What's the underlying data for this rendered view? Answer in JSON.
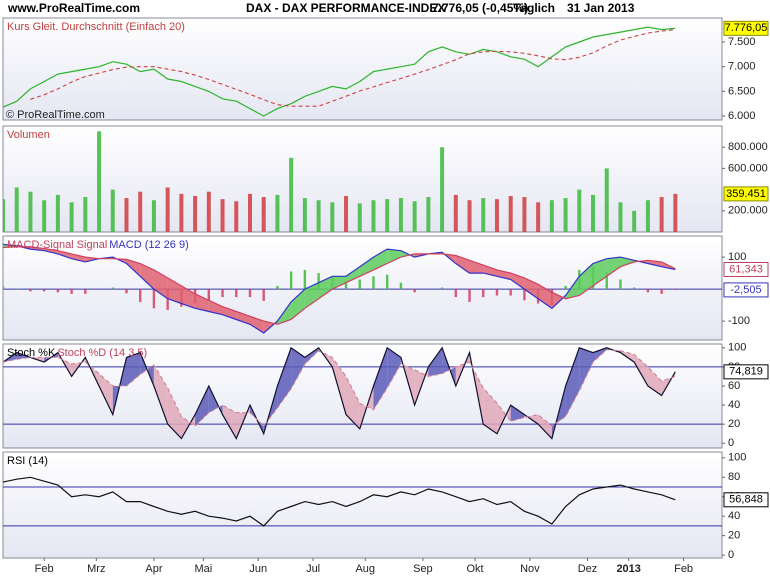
{
  "header": {
    "site": "www.ProRealTime.com",
    "title": "DAX - DAX PERFORMANCE-INDEX",
    "quote": "7.776,05 (-0,45%)",
    "period": "Täglich",
    "date": "31 Jan 2013"
  },
  "chart_data": [
    {
      "type": "line",
      "titles": [
        {
          "text": "Kurs Gleit. Durchschnitt (Einfach 20)",
          "color": "#c04040"
        }
      ],
      "copyright": "© ProRealTime.com",
      "xlim": [
        0,
        262
      ],
      "ylim": [
        5920,
        7985
      ],
      "yticks": [
        {
          "value": 6000,
          "label": "6.000"
        },
        {
          "value": 6500,
          "label": "6.500"
        },
        {
          "value": 7000,
          "label": "7.000"
        },
        {
          "value": 7500,
          "label": "7.500"
        }
      ],
      "x": [
        0,
        5,
        10,
        15,
        20,
        25,
        30,
        35,
        40,
        45,
        50,
        55,
        60,
        65,
        70,
        75,
        80,
        85,
        90,
        95,
        100,
        105,
        110,
        115,
        120,
        125,
        130,
        135,
        140,
        145,
        150,
        155,
        160,
        165,
        170,
        175,
        180,
        185,
        190,
        195,
        200,
        205,
        210,
        215,
        220,
        225,
        230,
        235,
        240,
        245
      ],
      "series": [
        {
          "name": "Kurs",
          "color": "#2db52d",
          "style": "line",
          "last_label": "7.776,05",
          "label_fill": "#ffff00",
          "label_color": "#000000",
          "values": [
            6180,
            6300,
            6550,
            6700,
            6850,
            6900,
            6950,
            7000,
            7100,
            7050,
            6900,
            6950,
            6750,
            6700,
            6600,
            6500,
            6350,
            6300,
            6150,
            6000,
            6150,
            6250,
            6400,
            6500,
            6600,
            6550,
            6700,
            6900,
            6950,
            7000,
            7050,
            7300,
            7400,
            7300,
            7250,
            7350,
            7300,
            7200,
            7150,
            7000,
            7200,
            7400,
            7500,
            7600,
            7650,
            7700,
            7750,
            7800,
            7750,
            7776.05
          ]
        },
        {
          "name": "Gleit. Durchschnitt",
          "color": "#d04040",
          "style": "dashed",
          "values": [
            null,
            null,
            6340,
            6430,
            6550,
            6690,
            6800,
            6870,
            6940,
            6990,
            7000,
            7000,
            6950,
            6900,
            6830,
            6740,
            6640,
            6540,
            6440,
            6330,
            6230,
            6200,
            6200,
            6200,
            6300,
            6400,
            6510,
            6590,
            6680,
            6760,
            6850,
            6940,
            7040,
            7140,
            7260,
            7300,
            7310,
            7300,
            7270,
            7220,
            7160,
            7140,
            7190,
            7280,
            7420,
            7540,
            7610,
            7680,
            7720,
            7750
          ]
        }
      ]
    },
    {
      "type": "bar",
      "titles": [
        {
          "text": "Volumen",
          "color": "#c04040"
        }
      ],
      "xlim": [
        0,
        262
      ],
      "ylim": [
        0,
        1000000
      ],
      "yticks": [
        {
          "value": 200000,
          "label": "200.000"
        },
        {
          "value": 600000,
          "label": "600.000"
        },
        {
          "value": 800000,
          "label": "800.000"
        }
      ],
      "x": [
        0,
        5,
        10,
        15,
        20,
        25,
        30,
        35,
        40,
        45,
        50,
        55,
        60,
        65,
        70,
        75,
        80,
        85,
        90,
        95,
        100,
        105,
        110,
        115,
        120,
        125,
        130,
        135,
        140,
        145,
        150,
        155,
        160,
        165,
        170,
        175,
        180,
        185,
        190,
        195,
        200,
        205,
        210,
        215,
        220,
        225,
        230,
        235,
        240,
        245
      ],
      "series": [
        {
          "name": "Volumen",
          "color": "#3cb83c",
          "style": "bar",
          "last_label": "359.451",
          "label_fill": "#ffff00",
          "label_color": "#000000",
          "values": [
            310000,
            420000,
            380000,
            300000,
            350000,
            280000,
            330000,
            950000,
            400000,
            320000,
            380000,
            300000,
            420000,
            360000,
            340000,
            380000,
            310000,
            290000,
            360000,
            330000,
            350000,
            700000,
            320000,
            300000,
            280000,
            340000,
            270000,
            300000,
            310000,
            320000,
            290000,
            330000,
            800000,
            350000,
            300000,
            320000,
            310000,
            340000,
            330000,
            280000,
            300000,
            320000,
            400000,
            350000,
            600000,
            280000,
            200000,
            300000,
            330000,
            359451
          ],
          "colors": [
            "#3cb83c",
            "#3cb83c",
            "#3cb83c",
            "#3cb83c",
            "#3cb83c",
            "#3cb83c",
            "#3cb83c",
            "#3cb83c",
            "#3cb83c",
            "#d03c3c",
            "#d03c3c",
            "#3cb83c",
            "#d03c3c",
            "#d03c3c",
            "#d03c3c",
            "#d03c3c",
            "#d03c3c",
            "#d03c3c",
            "#d03c3c",
            "#d03c3c",
            "#3cb83c",
            "#3cb83c",
            "#3cb83c",
            "#3cb83c",
            "#3cb83c",
            "#d03c3c",
            "#3cb83c",
            "#3cb83c",
            "#3cb83c",
            "#3cb83c",
            "#3cb83c",
            "#3cb83c",
            "#3cb83c",
            "#d03c3c",
            "#d03c3c",
            "#3cb83c",
            "#d03c3c",
            "#d03c3c",
            "#d03c3c",
            "#d03c3c",
            "#3cb83c",
            "#3cb83c",
            "#3cb83c",
            "#3cb83c",
            "#3cb83c",
            "#3cb83c",
            "#3cb83c",
            "#3cb83c",
            "#d03c3c",
            "#d03c3c"
          ]
        }
      ]
    },
    {
      "type": "macd",
      "titles": [
        {
          "text": "MACD-Signal Signal",
          "color": "#c04060"
        },
        {
          "text": "MACD (12 26 9)",
          "color": "#3333bb"
        }
      ],
      "xlim": [
        0,
        262
      ],
      "ylim": [
        -159,
        166
      ],
      "yticks": [
        -100,
        100
      ],
      "hlines": [
        0
      ],
      "hline_color": "#3333aa",
      "fill": {
        "up": "#5ccc5c",
        "down": "#e06070"
      },
      "x": [
        0,
        5,
        10,
        15,
        20,
        25,
        30,
        35,
        40,
        45,
        50,
        55,
        60,
        65,
        70,
        75,
        80,
        85,
        90,
        95,
        100,
        105,
        110,
        115,
        120,
        125,
        130,
        135,
        140,
        145,
        150,
        155,
        160,
        165,
        170,
        175,
        180,
        185,
        190,
        195,
        200,
        205,
        210,
        215,
        220,
        225,
        230,
        235,
        240,
        245
      ],
      "series": [
        {
          "name": "MACD",
          "color": "#3333cc",
          "style": "line",
          "last_label": "61,343",
          "label_fill": "#ffffff",
          "label_color": "#c04060",
          "values": [
            140,
            135,
            125,
            120,
            110,
            95,
            85,
            95,
            100,
            80,
            40,
            0,
            -30,
            -45,
            -60,
            -70,
            -80,
            -95,
            -110,
            -137,
            -100,
            -40,
            0,
            20,
            40,
            40,
            70,
            100,
            125,
            120,
            100,
            110,
            115,
            80,
            50,
            50,
            40,
            30,
            0,
            -30,
            -60,
            -20,
            40,
            80,
            95,
            100,
            90,
            80,
            70,
            61.343
          ]
        },
        {
          "name": "Signal",
          "color": "#d04060",
          "style": "line",
          "values": [
            130,
            133,
            132,
            127,
            120,
            110,
            100,
            95,
            95,
            93,
            80,
            60,
            35,
            10,
            -15,
            -35,
            -55,
            -70,
            -85,
            -100,
            -110,
            -95,
            -60,
            -30,
            0,
            20,
            40,
            60,
            80,
            100,
            110,
            110,
            110,
            105,
            90,
            75,
            60,
            50,
            35,
            15,
            -10,
            -30,
            -20,
            10,
            40,
            70,
            85,
            90,
            85,
            63.848
          ]
        },
        {
          "name": "MACD-Signal",
          "color": "#d04060",
          "up_color": "#3cb83c",
          "style": "histogram",
          "last_label": "-2,505",
          "label_fill": "#ffffff",
          "label_color": "#3333bb",
          "values": [
            10,
            2,
            -7,
            -7,
            -10,
            -15,
            -15,
            0,
            5,
            -13,
            -40,
            -60,
            -65,
            -55,
            -45,
            -35,
            -25,
            -25,
            -25,
            -37,
            10,
            55,
            60,
            50,
            40,
            20,
            30,
            40,
            45,
            20,
            -10,
            0,
            5,
            -25,
            -40,
            -25,
            -20,
            -20,
            -35,
            -45,
            -50,
            10,
            60,
            70,
            55,
            30,
            5,
            -10,
            -15,
            -2.505
          ]
        }
      ]
    },
    {
      "type": "stochastic",
      "titles": [
        {
          "text": "Stoch %K",
          "color": "#000000"
        },
        {
          "text": "Stoch %D (14 3 5)",
          "color": "#c04060"
        }
      ],
      "xlim": [
        0,
        262
      ],
      "ylim": [
        -5,
        104
      ],
      "yticks": [
        0,
        20,
        40,
        60,
        80,
        100
      ],
      "hlines": [
        20,
        80
      ],
      "hline_color": "#3333aa",
      "fill": {
        "up": "#5a5ab8",
        "down": "#e0a8b8"
      },
      "x": [
        0,
        5,
        10,
        15,
        20,
        25,
        30,
        35,
        40,
        45,
        50,
        55,
        60,
        65,
        70,
        75,
        80,
        85,
        90,
        95,
        100,
        105,
        110,
        115,
        120,
        125,
        130,
        135,
        140,
        145,
        150,
        155,
        160,
        165,
        170,
        175,
        180,
        185,
        190,
        195,
        200,
        205,
        210,
        215,
        220,
        225,
        230,
        235,
        240,
        245
      ],
      "series": [
        {
          "name": "Stoch %K",
          "color": "#101030",
          "style": "line",
          "last_label": "74,819",
          "label_fill": "#ffffff",
          "label_color": "#000000",
          "values": [
            85,
            95,
            90,
            85,
            95,
            70,
            90,
            60,
            30,
            90,
            95,
            60,
            20,
            5,
            30,
            60,
            30,
            5,
            40,
            10,
            60,
            100,
            90,
            100,
            80,
            30,
            15,
            60,
            100,
            90,
            40,
            80,
            100,
            60,
            95,
            20,
            10,
            40,
            30,
            20,
            5,
            60,
            100,
            95,
            100,
            95,
            85,
            60,
            50,
            74.819
          ]
        },
        {
          "name": "Stoch %D",
          "color": "#d08090",
          "style": "dashed",
          "values": [
            85,
            88,
            90,
            90,
            90,
            83,
            85,
            73,
            60,
            60,
            72,
            82,
            58,
            28,
            18,
            32,
            40,
            32,
            32,
            18,
            37,
            57,
            83,
            97,
            90,
            70,
            42,
            35,
            58,
            83,
            77,
            70,
            73,
            80,
            85,
            58,
            42,
            23,
            27,
            30,
            18,
            28,
            55,
            85,
            98,
            97,
            93,
            80,
            65,
            70
          ]
        }
      ]
    },
    {
      "type": "line",
      "titles": [
        {
          "text": "RSI (14)",
          "color": "#000000"
        }
      ],
      "xlim": [
        0,
        262
      ],
      "ylim": [
        -3,
        106
      ],
      "yticks": [
        0,
        20,
        40,
        60,
        80,
        100
      ],
      "hlines": [
        30,
        70
      ],
      "hline_color": "#3333aa",
      "xticks": [
        {
          "value": 15,
          "label": "Feb"
        },
        {
          "value": 34,
          "label": "Mrz"
        },
        {
          "value": 55,
          "label": "Apr"
        },
        {
          "value": 73,
          "label": "Mai"
        },
        {
          "value": 93,
          "label": "Jun"
        },
        {
          "value": 113,
          "label": "Jul"
        },
        {
          "value": 132,
          "label": "Aug"
        },
        {
          "value": 153,
          "label": "Sep"
        },
        {
          "value": 172,
          "label": "Okt"
        },
        {
          "value": 192,
          "label": "Nov"
        },
        {
          "value": 213,
          "label": "Dez"
        },
        {
          "value": 228,
          "label": "2013"
        },
        {
          "value": 248,
          "label": "Feb"
        }
      ],
      "x": [
        0,
        5,
        10,
        15,
        20,
        25,
        30,
        35,
        40,
        45,
        50,
        55,
        60,
        65,
        70,
        75,
        80,
        85,
        90,
        95,
        100,
        105,
        110,
        115,
        120,
        125,
        130,
        135,
        140,
        145,
        150,
        155,
        160,
        165,
        170,
        175,
        180,
        185,
        190,
        195,
        200,
        205,
        210,
        215,
        220,
        225,
        230,
        235,
        240,
        245
      ],
      "series": [
        {
          "name": "RSI",
          "color": "#111111",
          "style": "line",
          "last_label": "56,848",
          "label_fill": "#ffffff",
          "label_color": "#000000",
          "values": [
            75,
            78,
            80,
            76,
            72,
            60,
            62,
            60,
            65,
            55,
            55,
            50,
            45,
            42,
            45,
            40,
            38,
            35,
            40,
            30,
            45,
            50,
            55,
            52,
            55,
            50,
            55,
            62,
            60,
            65,
            62,
            68,
            65,
            60,
            55,
            58,
            52,
            55,
            45,
            40,
            32,
            50,
            62,
            68,
            70,
            72,
            68,
            65,
            62,
            56.848
          ]
        }
      ]
    }
  ]
}
